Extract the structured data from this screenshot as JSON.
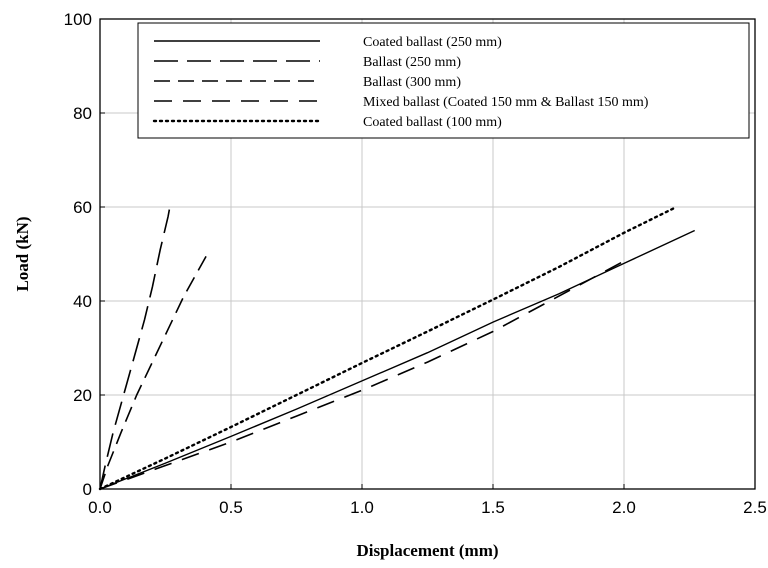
{
  "chart_data": {
    "type": "line",
    "title": "",
    "xlabel": "Displacement (mm)",
    "ylabel": "Load (kN)",
    "xlim": [
      0,
      2.5
    ],
    "ylim": [
      0,
      100
    ],
    "x_ticks": [
      "0.0",
      "0.5",
      "1.0",
      "1.5",
      "2.0",
      "2.5"
    ],
    "y_ticks": [
      "0",
      "20",
      "40",
      "60",
      "80",
      "100"
    ],
    "grid": true,
    "legend_position": "top-right",
    "series": [
      {
        "name": "Coated ballast (250 mm)",
        "line_style": "solid",
        "points": [
          [
            0,
            0
          ],
          [
            0.25,
            5.5
          ],
          [
            0.5,
            11.2
          ],
          [
            0.75,
            17
          ],
          [
            1.0,
            23
          ],
          [
            1.25,
            29
          ],
          [
            1.5,
            35.5
          ],
          [
            1.75,
            41.5
          ],
          [
            2.0,
            48
          ],
          [
            2.27,
            55
          ]
        ]
      },
      {
        "name": "Ballast (250 mm)",
        "line_style": "long-dash",
        "points": [
          [
            0,
            0
          ],
          [
            0.02,
            5
          ],
          [
            0.05,
            12
          ],
          [
            0.09,
            20
          ],
          [
            0.13,
            28
          ],
          [
            0.17,
            36
          ],
          [
            0.2,
            43
          ],
          [
            0.23,
            51
          ],
          [
            0.26,
            58
          ],
          [
            0.27,
            61
          ]
        ]
      },
      {
        "name": "Ballast (300 mm)",
        "line_style": "medium-dash",
        "points": [
          [
            0,
            0
          ],
          [
            0.03,
            5
          ],
          [
            0.08,
            12
          ],
          [
            0.14,
            20
          ],
          [
            0.2,
            27
          ],
          [
            0.26,
            34
          ],
          [
            0.32,
            41
          ],
          [
            0.37,
            46
          ],
          [
            0.41,
            50
          ]
        ]
      },
      {
        "name": "Mixed ballast (Coated 150 mm & Ballast 150 mm)",
        "line_style": "dash",
        "points": [
          [
            0,
            0
          ],
          [
            0.25,
            5
          ],
          [
            0.5,
            10
          ],
          [
            0.75,
            15.5
          ],
          [
            1.0,
            21
          ],
          [
            1.25,
            27
          ],
          [
            1.5,
            33.5
          ],
          [
            1.75,
            41
          ],
          [
            2.0,
            48.5
          ],
          [
            2.02,
            49.5
          ]
        ]
      },
      {
        "name": "Coated ballast (100 mm)",
        "line_style": "dotted",
        "points": [
          [
            0,
            0
          ],
          [
            0.25,
            6.5
          ],
          [
            0.5,
            13.2
          ],
          [
            0.75,
            20
          ],
          [
            1.0,
            26.8
          ],
          [
            1.25,
            33.5
          ],
          [
            1.5,
            40.3
          ],
          [
            1.75,
            47.2
          ],
          [
            2.0,
            54.5
          ],
          [
            2.2,
            60
          ]
        ]
      }
    ]
  }
}
